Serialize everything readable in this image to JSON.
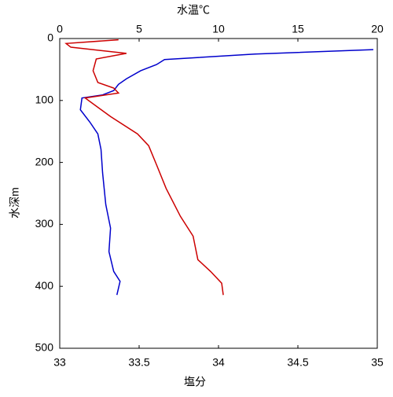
{
  "chart_data": {
    "type": "line",
    "x_label": "塩分",
    "x_label_color": "#cc0000",
    "x2_label": "水温℃",
    "x2_label_color": "#0000cc",
    "y_label": "水深m",
    "xlim": [
      33,
      35
    ],
    "xticks": [
      33,
      33.5,
      34,
      34.5,
      35
    ],
    "x2lim": [
      0,
      20
    ],
    "x2ticks": [
      0,
      5,
      10,
      15,
      20
    ],
    "ylim": [
      0,
      500
    ],
    "yticks": [
      0,
      100,
      200,
      300,
      400,
      500
    ],
    "y_inverted": true,
    "series": [
      {
        "color": "#0000cc",
        "axis": "x2",
        "x": [
          19.75,
          12.3,
          6.6,
          6.1,
          5.1,
          4.2,
          3.7,
          3.4,
          2.7,
          1.4,
          1.3,
          1.9,
          2.4,
          2.6,
          2.7,
          2.9,
          3.2,
          3.1,
          3.4,
          3.8,
          3.6
        ],
        "y": [
          18,
          25,
          34,
          42,
          52,
          65,
          74,
          84,
          91,
          96,
          115,
          135,
          154,
          179,
          217,
          268,
          306,
          344,
          376,
          392,
          414
        ]
      },
      {
        "color": "#cc0000",
        "axis": "x",
        "x": [
          33.37,
          33.04,
          33.07,
          33.42,
          33.23,
          33.21,
          33.24,
          33.34,
          33.37,
          33.16,
          33.32,
          33.49,
          33.56,
          33.61,
          33.67,
          33.76,
          33.84,
          33.87,
          33.95,
          34.02,
          34.03
        ],
        "y": [
          2,
          8,
          14,
          24,
          33,
          52,
          71,
          80,
          88,
          96,
          126,
          154,
          173,
          204,
          242,
          287,
          319,
          357,
          376,
          395,
          414
        ]
      }
    ]
  }
}
